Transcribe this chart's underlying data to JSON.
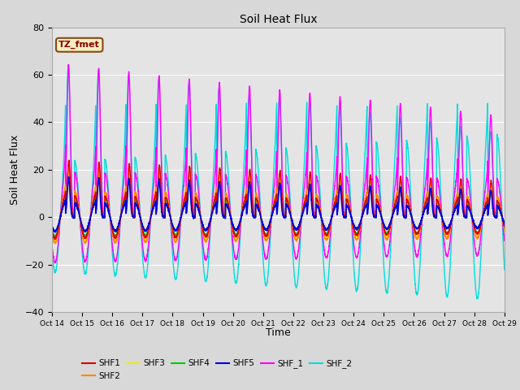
{
  "title": "Soil Heat Flux",
  "ylabel": "Soil Heat Flux",
  "xlabel": "Time",
  "ylim": [
    -40,
    80
  ],
  "fig_bg": "#d8d8d8",
  "plot_bg": "#e4e4e4",
  "annotation_text": "TZ_fmet",
  "annotation_bg": "#f5f0c0",
  "annotation_border": "#8B4513",
  "series_colors": {
    "SHF1": "#dd0000",
    "SHF2": "#ff8800",
    "SHF3": "#eeee00",
    "SHF4": "#00cc00",
    "SHF5": "#0000dd",
    "SHF_1": "#ff00ff",
    "SHF_2": "#00dddd"
  },
  "tick_labels": [
    "Oct 14",
    "Oct 15",
    "Oct 16",
    "Oct 17",
    "Oct 18",
    "Oct 19",
    "Oct 20",
    "Oct 21",
    "Oct 22",
    "Oct 23",
    "Oct 24",
    "Oct 25",
    "Oct 26",
    "Oct 27",
    "Oct 28",
    "Oct 29"
  ],
  "n_days": 15,
  "yticks": [
    -40,
    -20,
    0,
    20,
    40,
    60,
    80
  ],
  "grid_color": "#ffffff",
  "legend_items": [
    "SHF1",
    "SHF2",
    "SHF3",
    "SHF4",
    "SHF5",
    "SHF_1",
    "SHF_2"
  ]
}
